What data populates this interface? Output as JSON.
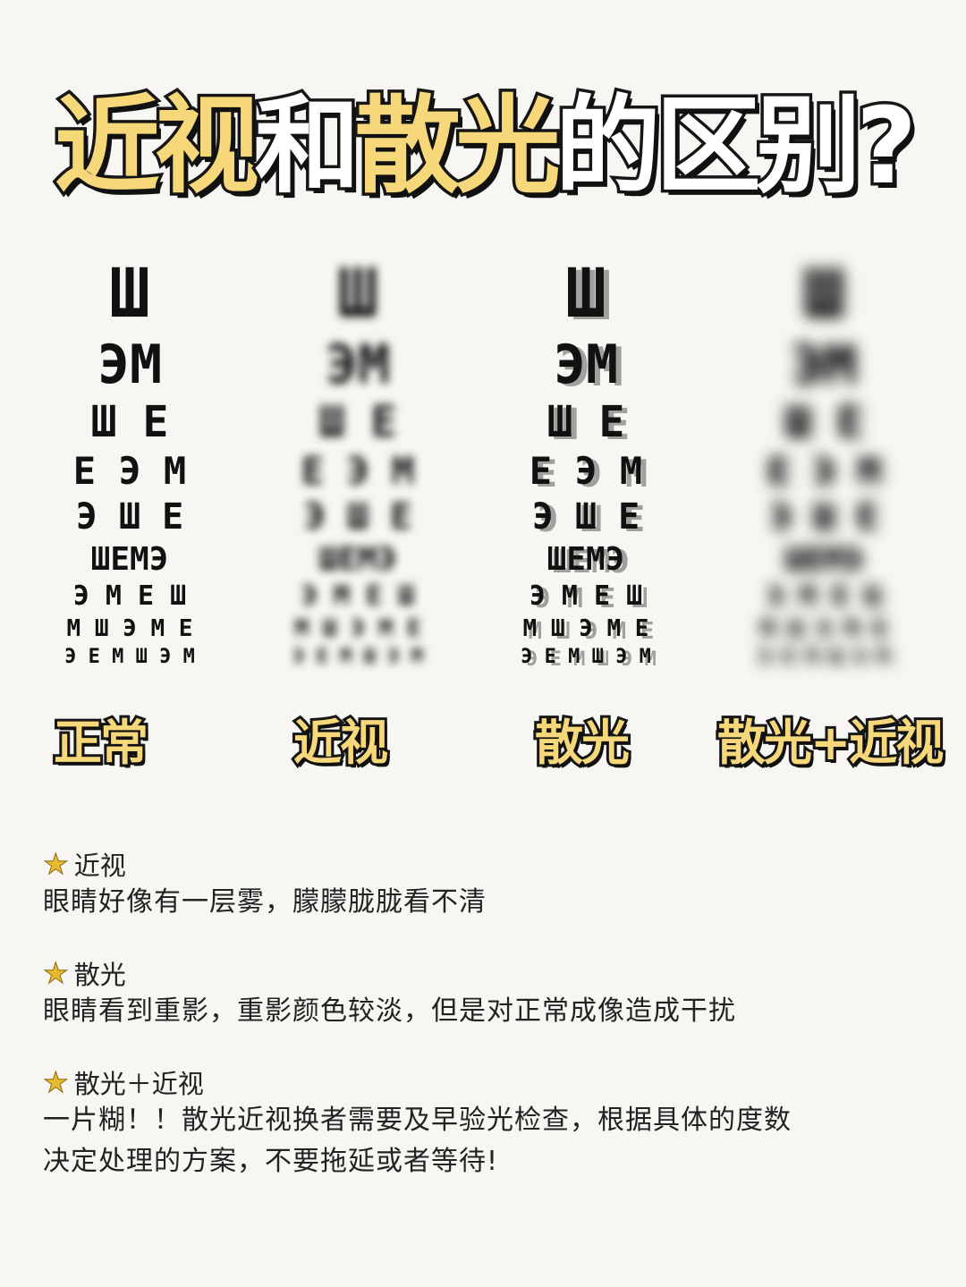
{
  "title": {
    "part1": "近视",
    "part2": "和",
    "part3": "散光",
    "part4": "的区别?"
  },
  "charts": [
    {
      "label": "正常",
      "effect": "sharp"
    },
    {
      "label": "近视",
      "effect": "blurred"
    },
    {
      "label": "散光",
      "effect": "double-image"
    },
    {
      "label": "散光+近视",
      "effect": "blurred-double-image"
    }
  ],
  "eye_chart_rows": [
    "Ш",
    "ЭM",
    "Ш E",
    "E Э M",
    "Э Ш E",
    "ШEMЭ",
    "Э M E Ш",
    "M Ш Э M E",
    "Э E M Ш Э M"
  ],
  "notes": [
    {
      "icon": "star-icon",
      "heading": "近视",
      "body": [
        "眼睛好像有一层雾，朦朦胧胧看不清"
      ]
    },
    {
      "icon": "star-icon",
      "heading": "散光",
      "body": [
        "眼睛看到重影，重影颜色较淡，但是对正常成像造成干扰"
      ]
    },
    {
      "icon": "star-icon",
      "heading": "散光＋近视",
      "body": [
        "一片糊！！散光近视换者需要及早验光检查，根据具体的度数",
        "决定处理的方案，不要拖延或者等待!"
      ]
    }
  ],
  "colors": {
    "title_gold": "#f6d87a",
    "outline": "#161616",
    "star": "#e8b931",
    "background": "#f7f6f2"
  }
}
